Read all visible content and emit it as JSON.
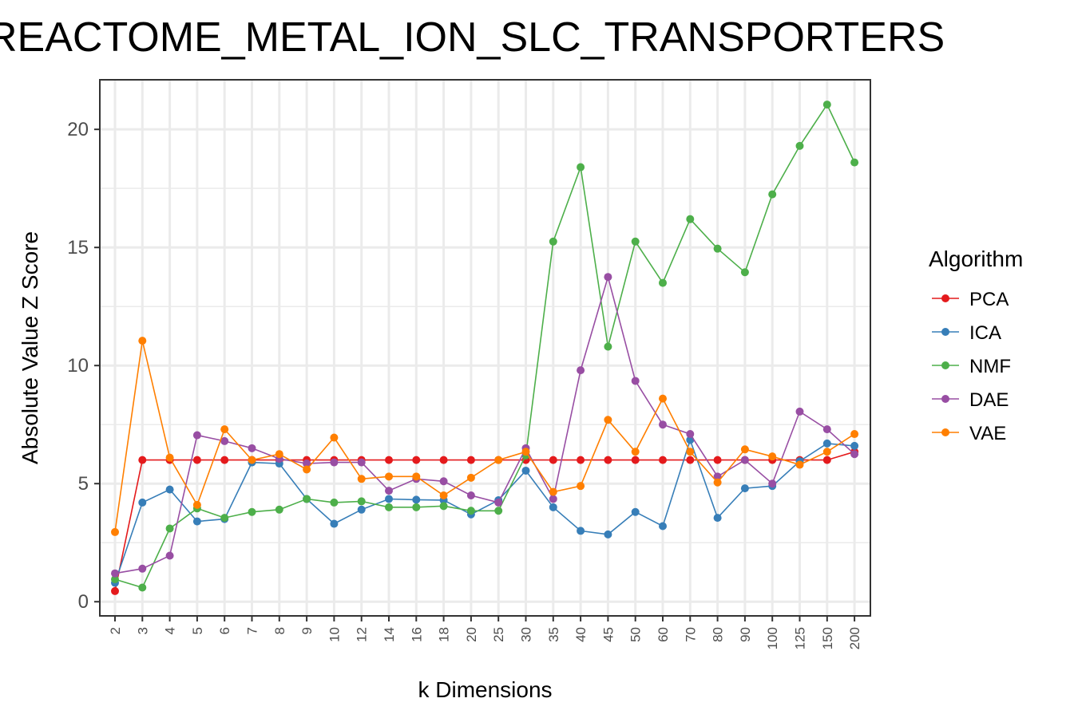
{
  "chart_data": {
    "type": "line",
    "title": "REACTOME_METAL_ION_SLC_TRANSPORTERS",
    "xlabel": "k Dimensions",
    "ylabel": "Absolute Value Z Score",
    "categories": [
      "2",
      "3",
      "4",
      "5",
      "6",
      "7",
      "8",
      "9",
      "10",
      "12",
      "14",
      "16",
      "18",
      "20",
      "25",
      "30",
      "35",
      "40",
      "45",
      "50",
      "60",
      "70",
      "80",
      "90",
      "100",
      "125",
      "150",
      "200"
    ],
    "y_ticks": [
      0,
      5,
      10,
      15,
      20
    ],
    "ylim": [
      -0.6,
      22.1
    ],
    "grid": true,
    "legend": {
      "title": "Algorithm",
      "position": "right"
    },
    "series": [
      {
        "name": "PCA",
        "color": "#e41a1c",
        "values": [
          0.45,
          6.0,
          6.0,
          6.0,
          6.0,
          6.0,
          6.0,
          6.0,
          6.0,
          6.0,
          6.0,
          6.0,
          6.0,
          6.0,
          6.0,
          6.0,
          6.0,
          6.0,
          6.0,
          6.0,
          6.0,
          6.0,
          6.0,
          6.0,
          6.0,
          6.0,
          6.0,
          6.35
        ]
      },
      {
        "name": "ICA",
        "color": "#377eb8",
        "values": [
          0.8,
          4.2,
          4.75,
          3.4,
          3.5,
          5.9,
          5.85,
          4.35,
          3.3,
          3.9,
          4.35,
          4.32,
          4.3,
          3.7,
          4.3,
          5.55,
          4.0,
          3.0,
          2.85,
          3.8,
          3.2,
          6.85,
          3.55,
          4.8,
          4.9,
          5.95,
          6.7,
          6.6
        ]
      },
      {
        "name": "NMF",
        "color": "#4daf4a",
        "values": [
          0.95,
          0.6,
          3.1,
          3.95,
          3.55,
          3.8,
          3.9,
          4.35,
          4.2,
          4.25,
          4.0,
          4.0,
          4.05,
          3.85,
          3.85,
          6.2,
          15.25,
          18.4,
          10.8,
          15.25,
          13.5,
          16.2,
          14.95,
          13.95,
          17.25,
          19.3,
          21.05,
          18.6
        ]
      },
      {
        "name": "DAE",
        "color": "#984ea3",
        "values": [
          1.2,
          1.4,
          1.95,
          7.05,
          6.8,
          6.5,
          6.05,
          5.85,
          5.9,
          5.9,
          4.7,
          5.2,
          5.1,
          4.5,
          4.2,
          6.5,
          4.35,
          9.8,
          13.75,
          9.35,
          7.5,
          7.1,
          5.3,
          6.0,
          5.0,
          8.05,
          7.3,
          6.25
        ]
      },
      {
        "name": "VAE",
        "color": "#ff7f00",
        "values": [
          2.95,
          11.05,
          6.1,
          4.1,
          7.3,
          6.0,
          6.25,
          5.6,
          6.95,
          5.2,
          5.3,
          5.3,
          4.5,
          5.25,
          6.0,
          6.35,
          4.65,
          4.9,
          7.7,
          6.35,
          8.6,
          6.35,
          5.05,
          6.45,
          6.15,
          5.8,
          6.35,
          7.1
        ]
      }
    ]
  }
}
